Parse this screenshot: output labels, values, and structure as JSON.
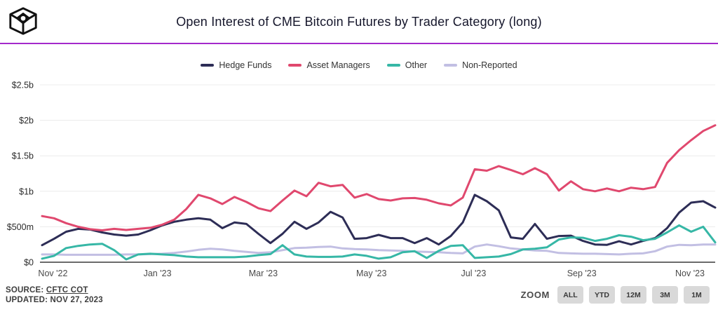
{
  "header": {
    "title": "Open Interest of CME Bitcoin Futures by Trader Category (long)",
    "logo_name": "the-block-cube-logo",
    "divider_color": "#A42ACB"
  },
  "chart_data": {
    "type": "line",
    "title": "Open Interest of CME Bitcoin Futures by Trader Category (long)",
    "x_description": "Weekly CFTC COT observations, Nov 2022 - Nov 2023",
    "weeks": 57,
    "ylim": [
      0,
      2500
    ],
    "y_unit": "$m",
    "grid": true,
    "grid_color": "#ececec",
    "axis_color": "#6b6b6b",
    "tick_color": "#2b2b2b",
    "xtick_color": "#4a4a4a",
    "legend_position": "top-center",
    "y_ticks": [
      {
        "label": "$0",
        "value": 0
      },
      {
        "label": "$500m",
        "value": 500
      },
      {
        "label": "$1b",
        "value": 1000
      },
      {
        "label": "$1.5b",
        "value": 1500
      },
      {
        "label": "$2b",
        "value": 2000
      },
      {
        "label": "$2.5b",
        "value": 2500
      }
    ],
    "x_ticks": [
      {
        "label": "Nov '22",
        "week": 0.9
      },
      {
        "label": "Jan '23",
        "week": 9.6
      },
      {
        "label": "Mar '23",
        "week": 18.4
      },
      {
        "label": "May '23",
        "week": 27.4
      },
      {
        "label": "Jul '23",
        "week": 35.9
      },
      {
        "label": "Sep '23",
        "week": 44.9
      },
      {
        "label": "Nov '23",
        "week": 53.9
      }
    ],
    "series": [
      {
        "name": "Hedge Funds",
        "color": "#2D2D56",
        "values": [
          240,
          330,
          430,
          470,
          460,
          420,
          390,
          375,
          390,
          450,
          520,
          570,
          600,
          620,
          600,
          480,
          560,
          540,
          400,
          270,
          400,
          570,
          470,
          560,
          710,
          630,
          330,
          340,
          385,
          340,
          340,
          270,
          340,
          250,
          370,
          560,
          950,
          860,
          730,
          350,
          330,
          540,
          330,
          370,
          375,
          300,
          250,
          245,
          295,
          250,
          300,
          340,
          480,
          700,
          840,
          860,
          770
        ]
      },
      {
        "name": "Asset Managers",
        "color": "#E0486E",
        "values": [
          650,
          620,
          550,
          500,
          465,
          450,
          470,
          455,
          470,
          485,
          530,
          600,
          750,
          950,
          900,
          820,
          920,
          850,
          760,
          720,
          870,
          1010,
          930,
          1120,
          1070,
          1090,
          910,
          960,
          890,
          870,
          900,
          905,
          880,
          830,
          800,
          910,
          1310,
          1290,
          1355,
          1300,
          1240,
          1325,
          1240,
          1010,
          1140,
          1030,
          1000,
          1040,
          1000,
          1050,
          1030,
          1060,
          1400,
          1580,
          1720,
          1850,
          1930
        ]
      },
      {
        "name": "Other",
        "color": "#36B7A6",
        "values": [
          50,
          90,
          200,
          230,
          250,
          260,
          170,
          40,
          110,
          120,
          110,
          100,
          80,
          70,
          70,
          70,
          70,
          80,
          100,
          115,
          240,
          110,
          80,
          75,
          75,
          80,
          110,
          90,
          50,
          70,
          140,
          155,
          60,
          160,
          230,
          240,
          60,
          70,
          80,
          115,
          180,
          190,
          210,
          320,
          350,
          345,
          300,
          330,
          380,
          360,
          310,
          330,
          420,
          520,
          430,
          500,
          280
        ]
      },
      {
        "name": "Non-Reported",
        "color": "#C2BFE3",
        "values": [
          110,
          110,
          105,
          105,
          105,
          105,
          105,
          110,
          110,
          115,
          120,
          130,
          150,
          175,
          190,
          180,
          160,
          145,
          130,
          140,
          170,
          200,
          205,
          215,
          220,
          195,
          185,
          180,
          170,
          165,
          160,
          150,
          145,
          140,
          130,
          125,
          220,
          250,
          225,
          195,
          180,
          165,
          160,
          130,
          125,
          120,
          120,
          115,
          110,
          120,
          125,
          155,
          220,
          245,
          240,
          250,
          250
        ]
      }
    ],
    "draw_order": [
      0,
      1,
      3,
      2
    ]
  },
  "footer": {
    "source_label": "SOURCE:",
    "source_link": "CFTC COT",
    "updated": "UPDATED: NOV 27, 2023",
    "zoom_label": "ZOOM",
    "zoom_buttons": [
      "ALL",
      "YTD",
      "12M",
      "3M",
      "1M"
    ]
  }
}
